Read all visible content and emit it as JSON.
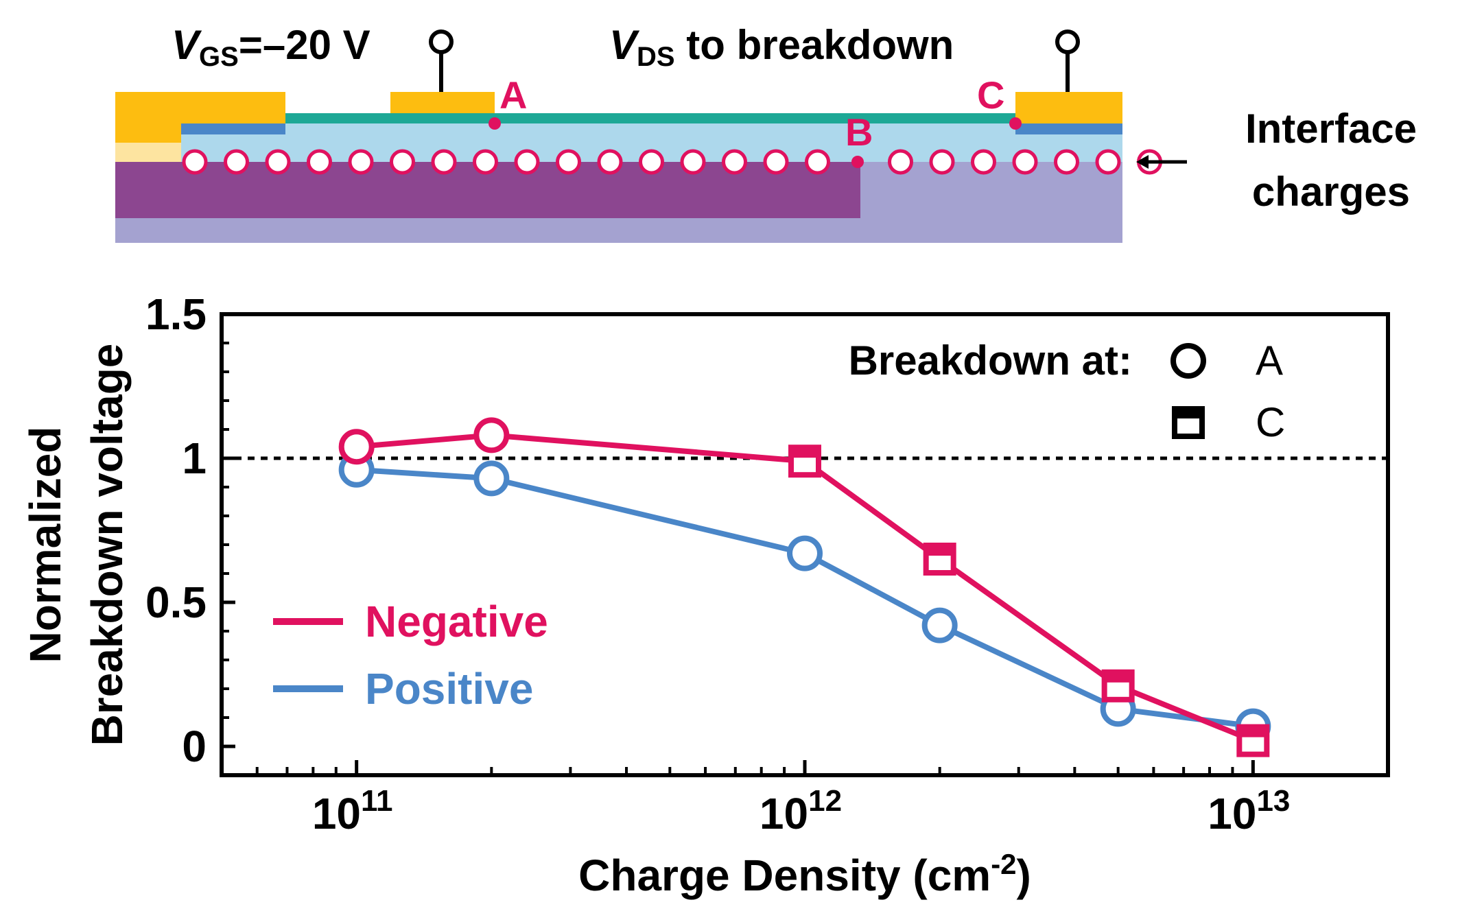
{
  "schematic": {
    "vgs_label": {
      "symbol": "V",
      "sub": "GS",
      "rest": "=–20 V"
    },
    "vds_label": {
      "symbol": "V",
      "sub": "DS",
      "rest": " to breakdown"
    },
    "points": [
      "A",
      "B",
      "C"
    ],
    "interface_label": [
      "Interface",
      "charges"
    ],
    "colors": {
      "contact": "#FDBD10",
      "contact_light": "#FDE4A0",
      "channel": "#1DA896",
      "dielectric": "#ADD8EC",
      "thin_layer": "#4A86C8",
      "substrate_dark": "#8C4690",
      "substrate_light": "#A4A2D0",
      "marker": "#E0115F"
    }
  },
  "chart_data": {
    "type": "line",
    "xlabel": "Charge Density (cm",
    "xlabel_sup": "-2",
    "xlabel_close": ")",
    "ylabel": [
      "Normalized",
      "Breakdown voltage"
    ],
    "x_scale": "log",
    "xlim": [
      50000000000.0,
      20000000000000.0
    ],
    "ylim": [
      -0.1,
      1.5
    ],
    "x_ticks": [
      {
        "base": "10",
        "exp": "11",
        "value": 100000000000.0
      },
      {
        "base": "10",
        "exp": "12",
        "value": 1000000000000.0
      },
      {
        "base": "10",
        "exp": "13",
        "value": 10000000000000.0
      }
    ],
    "y_ticks": [
      {
        "label": "0",
        "value": 0
      },
      {
        "label": "0.5",
        "value": 0.5
      },
      {
        "label": "1",
        "value": 1
      },
      {
        "label": "1.5",
        "value": 1.5
      }
    ],
    "reference_line": {
      "y": 1,
      "style": "dashed"
    },
    "series": [
      {
        "name": "Negative",
        "color": "#E0115F",
        "points": [
          {
            "x": 100000000000.0,
            "y": 1.04,
            "marker": "A"
          },
          {
            "x": 200000000000.0,
            "y": 1.08,
            "marker": "A"
          },
          {
            "x": 1000000000000.0,
            "y": 0.99,
            "marker": "C"
          },
          {
            "x": 2000000000000.0,
            "y": 0.65,
            "marker": "C"
          },
          {
            "x": 5000000000000.0,
            "y": 0.21,
            "marker": "C"
          },
          {
            "x": 10000000000000.0,
            "y": 0.02,
            "marker": "C"
          }
        ]
      },
      {
        "name": "Positive",
        "color": "#4A86C8",
        "points": [
          {
            "x": 100000000000.0,
            "y": 0.96,
            "marker": "A"
          },
          {
            "x": 200000000000.0,
            "y": 0.93,
            "marker": "A"
          },
          {
            "x": 1000000000000.0,
            "y": 0.67,
            "marker": "A"
          },
          {
            "x": 2000000000000.0,
            "y": 0.42,
            "marker": "A"
          },
          {
            "x": 5000000000000.0,
            "y": 0.13,
            "marker": "A"
          },
          {
            "x": 10000000000000.0,
            "y": 0.07,
            "marker": "A"
          }
        ]
      }
    ],
    "marker_legend": {
      "title": "Breakdown at:",
      "entries": [
        {
          "marker": "A",
          "label": "A"
        },
        {
          "marker": "C",
          "label": "C"
        }
      ]
    },
    "legend_position": "bottom-left"
  }
}
